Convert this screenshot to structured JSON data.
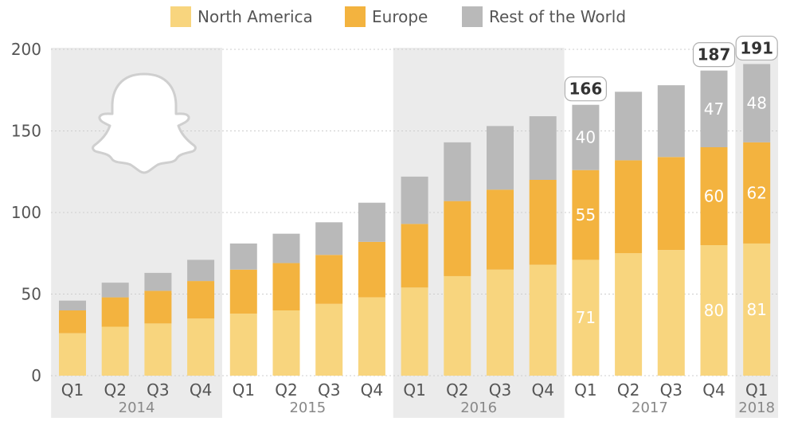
{
  "colors": {
    "north_america": "#F8D57E",
    "europe": "#F3B33F",
    "rest_of_world": "#B9B9B9",
    "year_band": "#EBEBEB",
    "gridline": "#CCCCCC",
    "axis_text": "#555555",
    "callout_text": "#333333"
  },
  "icons": [
    "snapchat-ghost-icon"
  ],
  "legend": [
    {
      "label": "North America",
      "color": "#F8D57E"
    },
    {
      "label": "Europe",
      "color": "#F3B33F"
    },
    {
      "label": "Rest of the World",
      "color": "#B9B9B9"
    }
  ],
  "chart_data": {
    "type": "bar",
    "stacked": true,
    "title": "",
    "xlabel": "",
    "ylabel": "",
    "ylim": [
      0,
      200
    ],
    "yticks": [
      0,
      50,
      100,
      150,
      200
    ],
    "grid": true,
    "legend_position": "top",
    "categories": [
      "Q1",
      "Q2",
      "Q3",
      "Q4",
      "Q1",
      "Q2",
      "Q3",
      "Q4",
      "Q1",
      "Q2",
      "Q3",
      "Q4",
      "Q1",
      "Q2",
      "Q3",
      "Q4",
      "Q1"
    ],
    "years": [
      {
        "label": "2014",
        "start": 0,
        "end": 3
      },
      {
        "label": "2015",
        "start": 4,
        "end": 7
      },
      {
        "label": "2016",
        "start": 8,
        "end": 11
      },
      {
        "label": "2017",
        "start": 12,
        "end": 15
      },
      {
        "label": "2018",
        "start": 16,
        "end": 16
      }
    ],
    "series": [
      {
        "name": "North America",
        "values": [
          26,
          30,
          32,
          35,
          38,
          40,
          44,
          48,
          54,
          61,
          65,
          68,
          71,
          75,
          77,
          80,
          81
        ]
      },
      {
        "name": "Europe",
        "values": [
          14,
          18,
          20,
          23,
          27,
          29,
          30,
          34,
          39,
          46,
          49,
          52,
          55,
          57,
          57,
          60,
          62
        ]
      },
      {
        "name": "Rest of the World",
        "values": [
          6,
          9,
          11,
          13,
          16,
          18,
          20,
          24,
          29,
          36,
          39,
          39,
          40,
          42,
          44,
          47,
          48
        ]
      }
    ],
    "data_labels": [
      {
        "index": 12,
        "series": [
          71,
          55,
          40
        ],
        "total": 166
      },
      {
        "index": 15,
        "series": [
          80,
          60,
          47
        ],
        "total": 187
      },
      {
        "index": 16,
        "series": [
          81,
          62,
          48
        ],
        "total": 191
      }
    ]
  }
}
